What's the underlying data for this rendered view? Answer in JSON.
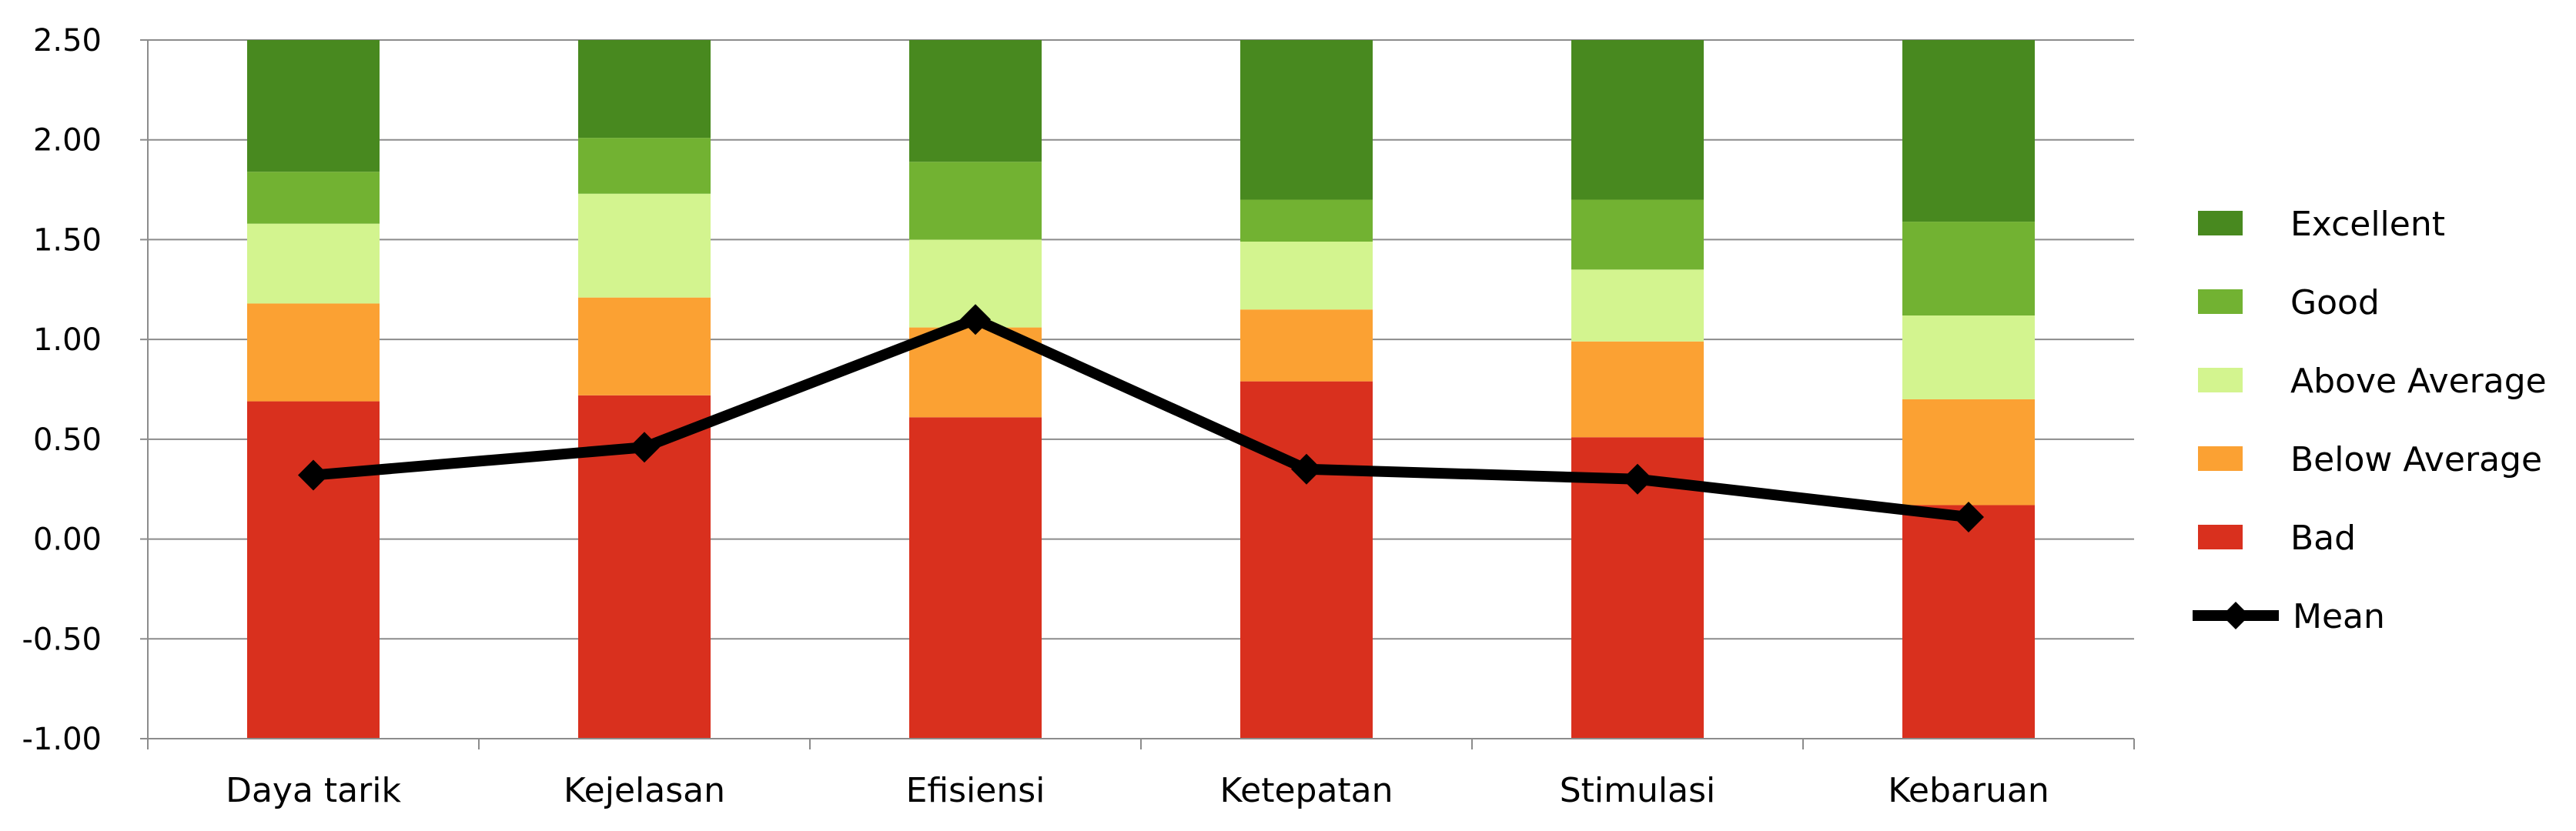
{
  "chart_data": {
    "type": "bar",
    "subtype": "stacked-bar-with-line",
    "categories": [
      "Daya tarik",
      "Kejelasan",
      "Efisiensi",
      "Ketepatan",
      "Stimulasi",
      "Kebaruan"
    ],
    "ylim": [
      -1.0,
      2.5
    ],
    "yticks": [
      "2.50",
      "2.00",
      "1.50",
      "1.00",
      "0.50",
      "0.00",
      "-0.50",
      "-1.00"
    ],
    "grid": true,
    "legend_position": "right",
    "stack_base": -1.0,
    "series": [
      {
        "name": "Bad",
        "color": "#d9301e",
        "kind": "bar",
        "values": [
          1.69,
          1.72,
          1.61,
          1.79,
          1.51,
          1.17
        ]
      },
      {
        "name": "Below Average",
        "color": "#fba133",
        "kind": "bar",
        "values": [
          0.49,
          0.49,
          0.45,
          0.36,
          0.48,
          0.53
        ]
      },
      {
        "name": "Above Average",
        "color": "#d3f48f",
        "kind": "bar",
        "values": [
          0.4,
          0.52,
          0.44,
          0.34,
          0.36,
          0.42
        ]
      },
      {
        "name": "Good",
        "color": "#72b232",
        "kind": "bar",
        "values": [
          0.26,
          0.28,
          0.39,
          0.21,
          0.35,
          0.47
        ]
      },
      {
        "name": "Excellent",
        "color": "#48891f",
        "kind": "bar",
        "values": [
          0.66,
          0.49,
          0.61,
          0.8,
          0.8,
          0.91
        ]
      },
      {
        "name": "Mean",
        "color": "#000000",
        "kind": "line",
        "marker": "diamond",
        "values": [
          0.32,
          0.46,
          1.1,
          0.35,
          0.3,
          0.11
        ]
      }
    ]
  }
}
